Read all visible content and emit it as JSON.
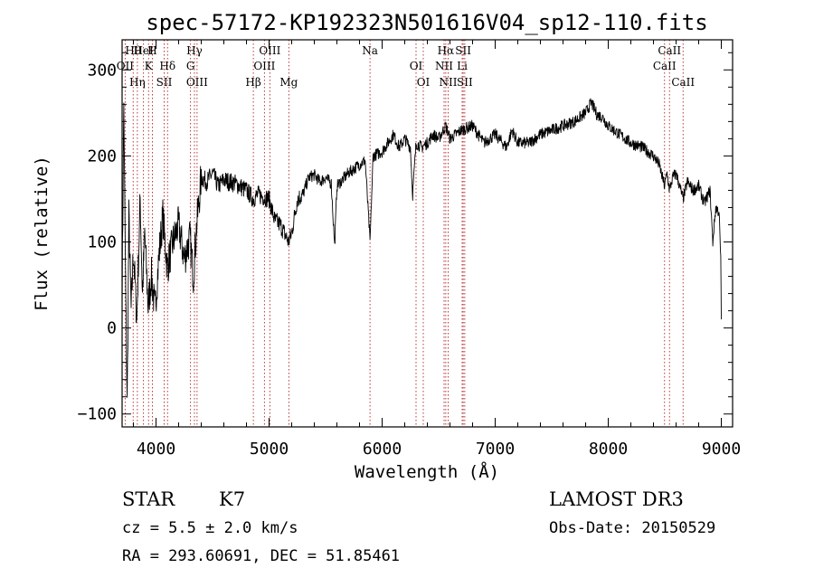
{
  "chart_data": {
    "type": "line",
    "title": "spec-57172-KP192323N501616V04_sp12-110.fits",
    "xlabel": "Wavelength (Å)",
    "ylabel": "Flux (relative)",
    "xlim": [
      3700,
      9100
    ],
    "ylim": [
      -115,
      335
    ],
    "xticks": [
      4000,
      5000,
      6000,
      7000,
      8000,
      9000
    ],
    "yticks": [
      -100,
      0,
      100,
      200,
      300
    ],
    "series": [
      {
        "name": "spectrum",
        "anchors": [
          [
            3700,
            40
          ],
          [
            3715,
            260
          ],
          [
            3730,
            60
          ],
          [
            3745,
            -90
          ],
          [
            3760,
            130
          ],
          [
            3780,
            20
          ],
          [
            3800,
            90
          ],
          [
            3830,
            10
          ],
          [
            3860,
            150
          ],
          [
            3880,
            40
          ],
          [
            3900,
            110
          ],
          [
            3930,
            25
          ],
          [
            3960,
            60
          ],
          [
            3990,
            20
          ],
          [
            4030,
            90
          ],
          [
            4060,
            130
          ],
          [
            4100,
            70
          ],
          [
            4150,
            100
          ],
          [
            4200,
            120
          ],
          [
            4250,
            80
          ],
          [
            4300,
            105
          ],
          [
            4330,
            60
          ],
          [
            4360,
            120
          ],
          [
            4400,
            175
          ],
          [
            4450,
            170
          ],
          [
            4500,
            180
          ],
          [
            4550,
            165
          ],
          [
            4600,
            172
          ],
          [
            4700,
            168
          ],
          [
            4800,
            160
          ],
          [
            4861,
            150
          ],
          [
            4900,
            155
          ],
          [
            5000,
            150
          ],
          [
            5050,
            125
          ],
          [
            5100,
            120
          ],
          [
            5172,
            100
          ],
          [
            5200,
            110
          ],
          [
            5250,
            150
          ],
          [
            5300,
            155
          ],
          [
            5350,
            175
          ],
          [
            5400,
            178
          ],
          [
            5450,
            170
          ],
          [
            5500,
            175
          ],
          [
            5550,
            168
          ],
          [
            5580,
            95
          ],
          [
            5600,
            165
          ],
          [
            5700,
            180
          ],
          [
            5800,
            190
          ],
          [
            5850,
            195
          ],
          [
            5893,
            100
          ],
          [
            5920,
            200
          ],
          [
            6000,
            205
          ],
          [
            6050,
            215
          ],
          [
            6100,
            225
          ],
          [
            6150,
            210
          ],
          [
            6200,
            220
          ],
          [
            6250,
            210
          ],
          [
            6270,
            155
          ],
          [
            6300,
            215
          ],
          [
            6350,
            210
          ],
          [
            6400,
            215
          ],
          [
            6450,
            225
          ],
          [
            6500,
            220
          ],
          [
            6563,
            235
          ],
          [
            6600,
            220
          ],
          [
            6650,
            225
          ],
          [
            6700,
            230
          ],
          [
            6800,
            235
          ],
          [
            6900,
            215
          ],
          [
            7000,
            225
          ],
          [
            7100,
            210
          ],
          [
            7150,
            230
          ],
          [
            7200,
            215
          ],
          [
            7300,
            215
          ],
          [
            7400,
            225
          ],
          [
            7500,
            230
          ],
          [
            7600,
            235
          ],
          [
            7700,
            240
          ],
          [
            7800,
            250
          ],
          [
            7850,
            262
          ],
          [
            7900,
            248
          ],
          [
            7950,
            245
          ],
          [
            8000,
            235
          ],
          [
            8100,
            225
          ],
          [
            8200,
            215
          ],
          [
            8300,
            210
          ],
          [
            8400,
            200
          ],
          [
            8450,
            190
          ],
          [
            8498,
            165
          ],
          [
            8520,
            180
          ],
          [
            8542,
            160
          ],
          [
            8570,
            175
          ],
          [
            8600,
            180
          ],
          [
            8662,
            150
          ],
          [
            8700,
            170
          ],
          [
            8750,
            160
          ],
          [
            8800,
            165
          ],
          [
            8850,
            145
          ],
          [
            8900,
            160
          ],
          [
            8925,
            100
          ],
          [
            8950,
            140
          ],
          [
            8980,
            135
          ],
          [
            8995,
            80
          ],
          [
            9000,
            10
          ]
        ]
      }
    ],
    "lines": [
      {
        "label": "Hθ",
        "x": 3798
      },
      {
        "label": "OII",
        "x": 3727
      },
      {
        "label": "Hη",
        "x": 3835
      },
      {
        "label": "HeI",
        "x": 3889
      },
      {
        "label": "K",
        "x": 3934
      },
      {
        "label": "SII",
        "x": 4072
      },
      {
        "label": "H",
        "x": 3968
      },
      {
        "label": "Hδ",
        "x": 4102
      },
      {
        "label": "OIII",
        "x": 4363
      },
      {
        "label": "Hγ",
        "x": 4340
      },
      {
        "label": "G",
        "x": 4305
      },
      {
        "label": "Hβ",
        "x": 4861
      },
      {
        "label": "OIII",
        "x": 5007
      },
      {
        "label": "OIII",
        "x": 4959
      },
      {
        "label": "Mg",
        "x": 5175
      },
      {
        "label": "Na",
        "x": 5893
      },
      {
        "label": "OI",
        "x": 6300
      },
      {
        "label": "OI",
        "x": 6364
      },
      {
        "label": "Hα",
        "x": 6563
      },
      {
        "label": "NII",
        "x": 6548
      },
      {
        "label": "NII",
        "x": 6584
      },
      {
        "label": "SII",
        "x": 6717
      },
      {
        "label": "Li",
        "x": 6708
      },
      {
        "label": "SII",
        "x": 6731
      },
      {
        "label": "CaII",
        "x": 8542
      },
      {
        "label": "CaII",
        "x": 8498
      },
      {
        "label": "CaII",
        "x": 8662
      }
    ]
  },
  "info": {
    "object_class": "STAR",
    "subclass": "K7",
    "survey": "LAMOST DR3",
    "cz": "cz = 5.5 ± 2.0 km/s",
    "obs_date": "Obs-Date: 20150529",
    "coords": "RA = 293.60691, DEC =  51.85461"
  },
  "colors": {
    "spectrum": "#000000",
    "line_marker": "#b22222",
    "axis": "#000000"
  }
}
